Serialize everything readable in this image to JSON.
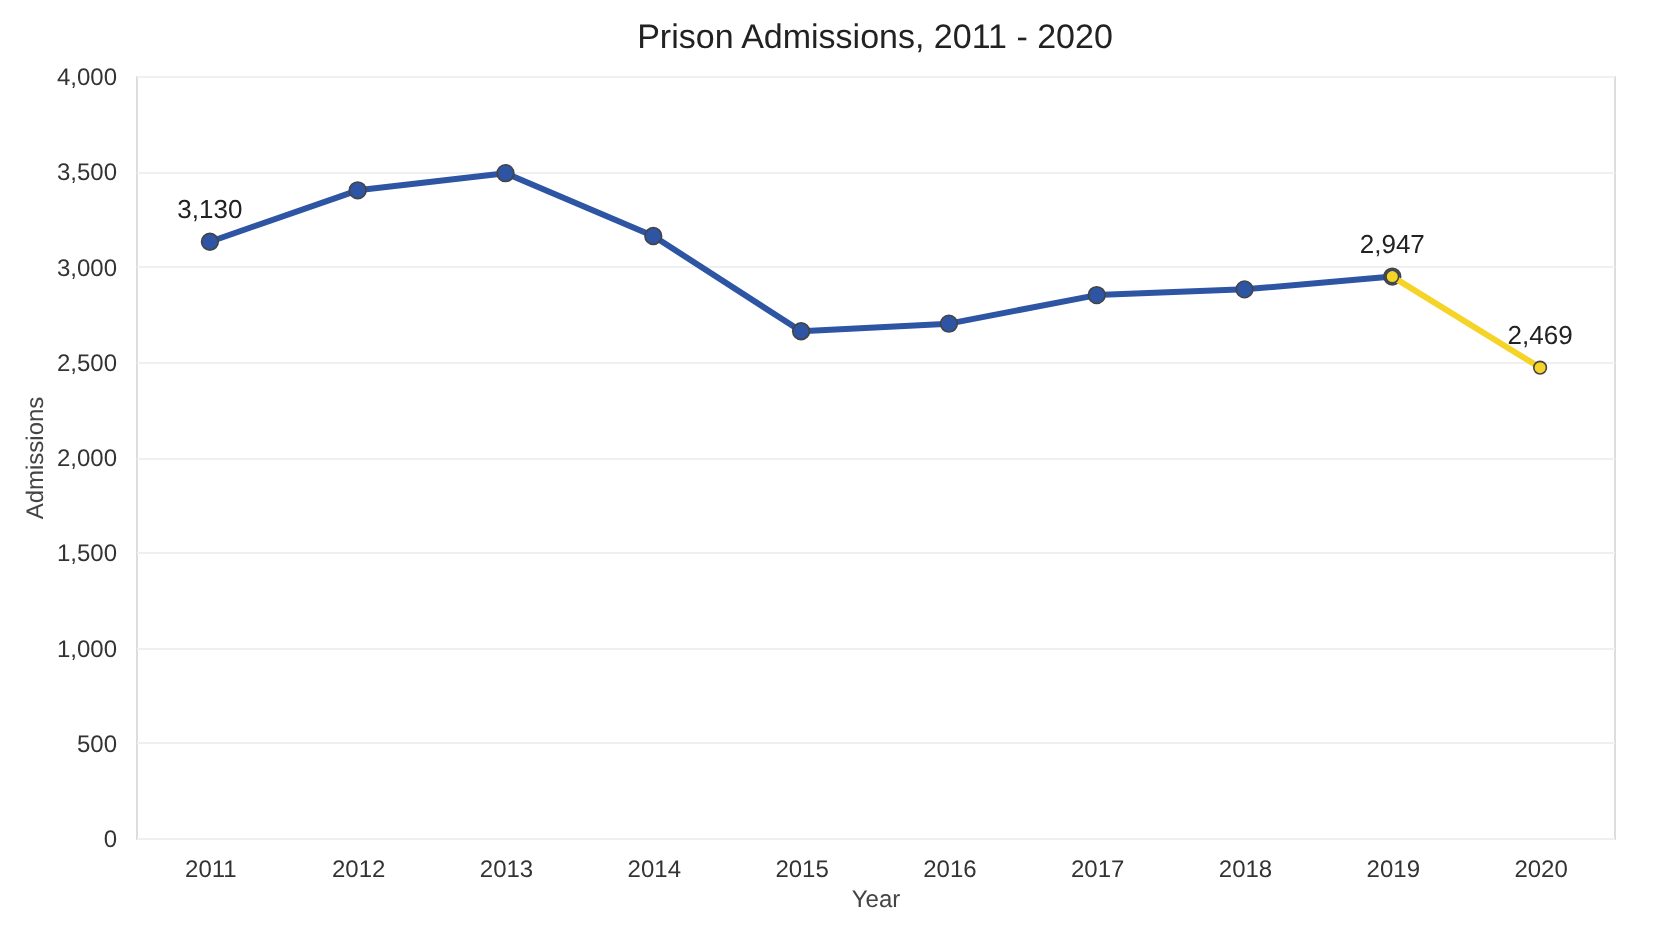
{
  "chart_data": {
    "type": "line",
    "title": "Prison Admissions, 2011 - 2020",
    "xlabel": "Year",
    "ylabel": "Admissions",
    "categories": [
      "2011",
      "2012",
      "2013",
      "2014",
      "2015",
      "2016",
      "2017",
      "2018",
      "2019",
      "2020"
    ],
    "series": [
      {
        "color": "#2e54a4",
        "values": [
          3130,
          3400,
          3490,
          3160,
          2660,
          2700,
          2850,
          2880,
          2947,
          null
        ],
        "value_labels": [
          "3,130",
          null,
          null,
          null,
          null,
          null,
          null,
          null,
          null,
          null
        ]
      },
      {
        "color": "#f5d327",
        "values": [
          null,
          null,
          null,
          null,
          null,
          null,
          null,
          null,
          2947,
          2469
        ],
        "value_labels": [
          null,
          null,
          null,
          null,
          null,
          null,
          null,
          null,
          "2,947",
          "2,469"
        ]
      }
    ],
    "ylim": [
      0,
      4000
    ],
    "yticks": [
      0,
      500,
      {
        "value": 1000,
        "label": "1,000"
      },
      {
        "value": 1500,
        "label": "1,500"
      },
      {
        "value": 2000,
        "label": "2,000"
      },
      {
        "value": 2500,
        "label": "2,500"
      },
      {
        "value": 3000,
        "label": "3,000"
      },
      {
        "value": 3500,
        "label": "3,500"
      },
      {
        "value": 4000,
        "label": "4,000"
      }
    ],
    "grid": "y",
    "marker": "circle",
    "line_style": "solid"
  }
}
